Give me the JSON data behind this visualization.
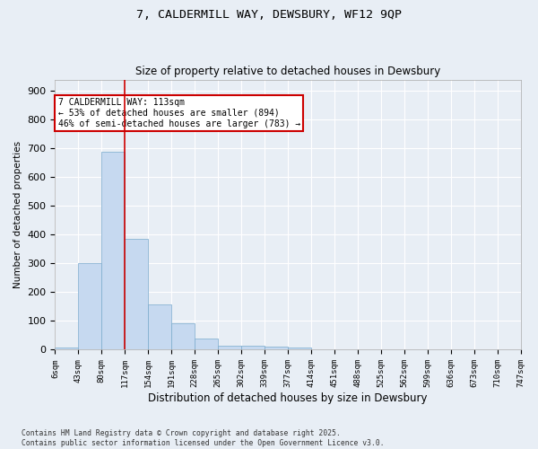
{
  "title_line1": "7, CALDERMILL WAY, DEWSBURY, WF12 9QP",
  "title_line2": "Size of property relative to detached houses in Dewsbury",
  "xlabel": "Distribution of detached houses by size in Dewsbury",
  "ylabel": "Number of detached properties",
  "bar_values": [
    8,
    300,
    690,
    385,
    157,
    92,
    40,
    15,
    14,
    11,
    8,
    0,
    0,
    0,
    0,
    0,
    0,
    0,
    0,
    0
  ],
  "bin_labels": [
    "6sqm",
    "43sqm",
    "80sqm",
    "117sqm",
    "154sqm",
    "191sqm",
    "228sqm",
    "265sqm",
    "302sqm",
    "339sqm",
    "377sqm",
    "414sqm",
    "451sqm",
    "488sqm",
    "525sqm",
    "562sqm",
    "599sqm",
    "636sqm",
    "673sqm",
    "710sqm",
    "747sqm"
  ],
  "bar_color": "#c6d9f0",
  "bar_edge_color": "#7aaacc",
  "background_color": "#e8eef5",
  "grid_color": "#ffffff",
  "vline_color": "#cc0000",
  "annotation_text": "7 CALDERMILL WAY: 113sqm\n← 53% of detached houses are smaller (894)\n46% of semi-detached houses are larger (783) →",
  "annotation_box_color": "#ffffff",
  "annotation_box_edge": "#cc0000",
  "footnote": "Contains HM Land Registry data © Crown copyright and database right 2025.\nContains public sector information licensed under the Open Government Licence v3.0.",
  "ylim": [
    0,
    940
  ],
  "yticks": [
    0,
    100,
    200,
    300,
    400,
    500,
    600,
    700,
    800,
    900
  ]
}
